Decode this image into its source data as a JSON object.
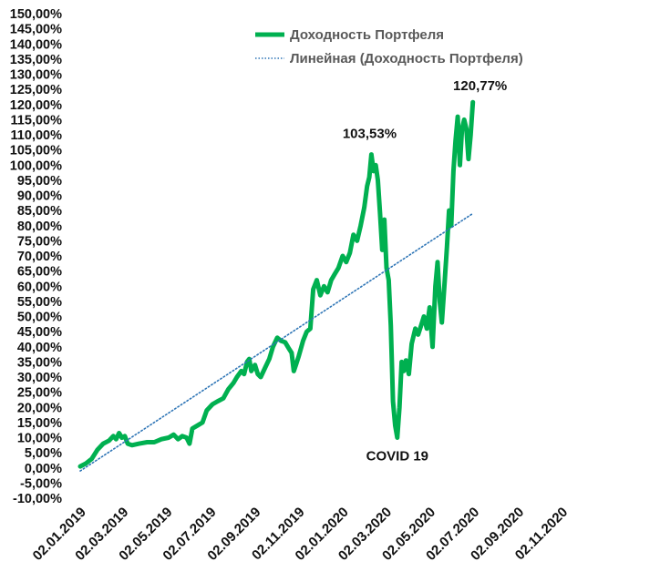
{
  "chart_data": {
    "type": "line",
    "y_axis": {
      "min": -10,
      "max": 150,
      "step": 5,
      "tick_labels": [
        "-10,00%",
        "-5,00%",
        "0,00%",
        "5,00%",
        "10,00%",
        "15,00%",
        "20,00%",
        "25,00%",
        "30,00%",
        "35,00%",
        "40,00%",
        "45,00%",
        "50,00%",
        "55,00%",
        "60,00%",
        "65,00%",
        "70,00%",
        "75,00%",
        "80,00%",
        "85,00%",
        "90,00%",
        "95,00%",
        "100,00%",
        "105,00%",
        "110,00%",
        "115,00%",
        "120,00%",
        "125,00%",
        "130,00%",
        "135,00%",
        "140,00%",
        "145,00%",
        "150,00%"
      ]
    },
    "x_axis": {
      "start": "2019-01-02",
      "end": "2020-12-31",
      "tick_labels": [
        "02.01.2019",
        "02.03.2019",
        "02.05.2019",
        "02.07.2019",
        "02.09.2019",
        "02.11.2019",
        "02.01.2020",
        "02.03.2020",
        "02.05.2020",
        "02.07.2020",
        "02.09.2020",
        "02.11.2020"
      ]
    },
    "grid": false,
    "legend_position": "top-right",
    "series": [
      {
        "name": "Доходность Портфеля",
        "color": "#00b050",
        "style": "solid",
        "points": [
          [
            "2019-01-02",
            0.5
          ],
          [
            "2019-01-10",
            1.5
          ],
          [
            "2019-01-18",
            3.0
          ],
          [
            "2019-01-26",
            6.0
          ],
          [
            "2019-02-03",
            8.0
          ],
          [
            "2019-02-11",
            9.0
          ],
          [
            "2019-02-17",
            10.5
          ],
          [
            "2019-02-21",
            9.5
          ],
          [
            "2019-02-25",
            11.5
          ],
          [
            "2019-03-01",
            10.0
          ],
          [
            "2019-03-05",
            10.5
          ],
          [
            "2019-03-09",
            8.0
          ],
          [
            "2019-03-15",
            7.5
          ],
          [
            "2019-03-25",
            8.0
          ],
          [
            "2019-04-05",
            8.5
          ],
          [
            "2019-04-15",
            8.5
          ],
          [
            "2019-04-25",
            9.5
          ],
          [
            "2019-05-05",
            10.0
          ],
          [
            "2019-05-12",
            11.0
          ],
          [
            "2019-05-18",
            9.5
          ],
          [
            "2019-05-24",
            10.5
          ],
          [
            "2019-05-30",
            10.0
          ],
          [
            "2019-06-03",
            8.0
          ],
          [
            "2019-06-07",
            13.0
          ],
          [
            "2019-06-14",
            14.0
          ],
          [
            "2019-06-21",
            15.0
          ],
          [
            "2019-06-27",
            19.0
          ],
          [
            "2019-07-05",
            21.0
          ],
          [
            "2019-07-12",
            22.0
          ],
          [
            "2019-07-20",
            23.0
          ],
          [
            "2019-07-27",
            26.0
          ],
          [
            "2019-08-03",
            28.0
          ],
          [
            "2019-08-08",
            30.0
          ],
          [
            "2019-08-14",
            32.0
          ],
          [
            "2019-08-18",
            31.0
          ],
          [
            "2019-08-22",
            35.0
          ],
          [
            "2019-08-25",
            36.0
          ],
          [
            "2019-08-28",
            32.0
          ],
          [
            "2019-09-02",
            34.0
          ],
          [
            "2019-09-06",
            31.0
          ],
          [
            "2019-09-10",
            30.0
          ],
          [
            "2019-09-16",
            33.0
          ],
          [
            "2019-09-22",
            36.0
          ],
          [
            "2019-09-27",
            40.0
          ],
          [
            "2019-10-03",
            43.0
          ],
          [
            "2019-10-08",
            42.0
          ],
          [
            "2019-10-14",
            41.5
          ],
          [
            "2019-10-19",
            39.5
          ],
          [
            "2019-10-23",
            38.0
          ],
          [
            "2019-10-26",
            32.0
          ],
          [
            "2019-10-29",
            34.0
          ],
          [
            "2019-11-02",
            37.0
          ],
          [
            "2019-11-08",
            42.0
          ],
          [
            "2019-11-13",
            45.0
          ],
          [
            "2019-11-18",
            46.0
          ],
          [
            "2019-11-22",
            59.0
          ],
          [
            "2019-11-27",
            62.0
          ],
          [
            "2019-12-02",
            57.0
          ],
          [
            "2019-12-07",
            60.0
          ],
          [
            "2019-12-12",
            58.0
          ],
          [
            "2019-12-17",
            62.0
          ],
          [
            "2019-12-22",
            64.0
          ],
          [
            "2019-12-27",
            66.0
          ],
          [
            "2020-01-02",
            70.0
          ],
          [
            "2020-01-07",
            68.0
          ],
          [
            "2020-01-12",
            71.0
          ],
          [
            "2020-01-17",
            77.0
          ],
          [
            "2020-01-22",
            75.0
          ],
          [
            "2020-01-27",
            80.0
          ],
          [
            "2020-02-01",
            86.0
          ],
          [
            "2020-02-05",
            93.0
          ],
          [
            "2020-02-08",
            96.0
          ],
          [
            "2020-02-11",
            103.5
          ],
          [
            "2020-02-14",
            98.0
          ],
          [
            "2020-02-17",
            100.0
          ],
          [
            "2020-02-20",
            95.0
          ],
          [
            "2020-02-23",
            84.0
          ],
          [
            "2020-02-26",
            72.0
          ],
          [
            "2020-02-29",
            82.0
          ],
          [
            "2020-03-03",
            66.0
          ],
          [
            "2020-03-06",
            62.0
          ],
          [
            "2020-03-09",
            47.0
          ],
          [
            "2020-03-12",
            22.0
          ],
          [
            "2020-03-15",
            14.0
          ],
          [
            "2020-03-18",
            10.0
          ],
          [
            "2020-03-21",
            20.0
          ],
          [
            "2020-03-24",
            35.0
          ],
          [
            "2020-03-27",
            32.0
          ],
          [
            "2020-03-30",
            35.5
          ],
          [
            "2020-04-03",
            31.0
          ],
          [
            "2020-04-07",
            41.0
          ],
          [
            "2020-04-12",
            46.0
          ],
          [
            "2020-04-16",
            44.0
          ],
          [
            "2020-04-20",
            47.0
          ],
          [
            "2020-04-24",
            50.0
          ],
          [
            "2020-04-28",
            46.0
          ],
          [
            "2020-05-02",
            53.0
          ],
          [
            "2020-05-06",
            40.0
          ],
          [
            "2020-05-10",
            60.0
          ],
          [
            "2020-05-13",
            68.0
          ],
          [
            "2020-05-16",
            55.0
          ],
          [
            "2020-05-19",
            48.0
          ],
          [
            "2020-05-23",
            62.0
          ],
          [
            "2020-05-26",
            73.0
          ],
          [
            "2020-05-29",
            85.0
          ],
          [
            "2020-06-01",
            80.0
          ],
          [
            "2020-06-04",
            98.0
          ],
          [
            "2020-06-07",
            108.0
          ],
          [
            "2020-06-10",
            116.0
          ],
          [
            "2020-06-13",
            100.0
          ],
          [
            "2020-06-16",
            112.0
          ],
          [
            "2020-06-19",
            115.0
          ],
          [
            "2020-06-22",
            112.0
          ],
          [
            "2020-06-25",
            102.0
          ],
          [
            "2020-06-28",
            110.0
          ],
          [
            "2020-07-01",
            120.77
          ]
        ]
      },
      {
        "name": "Линейная (Доходность Портфеля)",
        "color": "#2e75b6",
        "style": "dotted",
        "points": [
          [
            "2019-01-02",
            -1.0
          ],
          [
            "2020-07-01",
            84.0
          ]
        ]
      }
    ],
    "annotations": [
      {
        "text": "103,53%",
        "x": "2020-02-11",
        "y": 103.53
      },
      {
        "text": "120,77%",
        "x": "2020-07-01",
        "y": 120.77
      },
      {
        "text": "COVID 19",
        "x": "2020-03-18",
        "y": 10.0
      }
    ]
  }
}
